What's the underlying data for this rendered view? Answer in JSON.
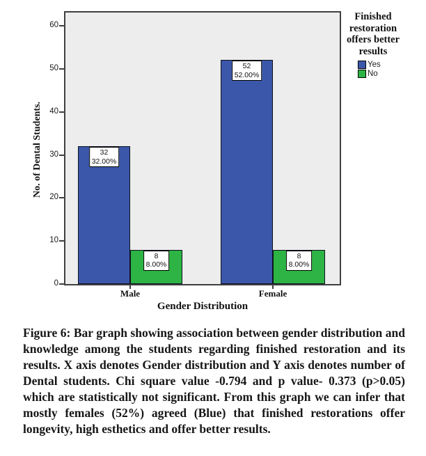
{
  "figure": {
    "caption": "Figure 6: Bar graph showing association between gender distribution and knowledge among the students regarding finished restoration and its results. X axis denotes Gender distribution and Y axis denotes number of Dental students. Chi square value -0.794 and p value- 0.373 (p>0.05) which are statistically not significant. From this graph we can infer that mostly females (52%) agreed (Blue) that finished restorations offer longevity, high esthetics and offer better results."
  },
  "chart_data": {
    "type": "bar",
    "title": "",
    "xlabel": "Gender Distribution",
    "ylabel": "No. of Dental Students.",
    "categories": [
      "Male",
      "Female"
    ],
    "series": [
      {
        "name": "Yes",
        "color": "#3B57A9",
        "values": [
          32,
          52
        ],
        "bar_labels": [
          [
            "32",
            "32.00%"
          ],
          [
            "52",
            "52.00%"
          ]
        ]
      },
      {
        "name": "No",
        "color": "#2DB444",
        "values": [
          8,
          8
        ],
        "bar_labels": [
          [
            "8",
            "8.00%"
          ],
          [
            "8",
            "8.00%"
          ]
        ]
      }
    ],
    "ylim": [
      0,
      60
    ],
    "yticks": [
      "0",
      "10",
      "20",
      "30",
      "40",
      "50",
      "60"
    ],
    "grid": false,
    "legend": {
      "title": "Finished restoration offers better results",
      "position": "top-right"
    },
    "colors": {
      "plot_background": "#EDEDED",
      "frame_border": "#3F3F3F",
      "yes_blue": "#3B57A9",
      "no_green": "#2DB444"
    }
  }
}
